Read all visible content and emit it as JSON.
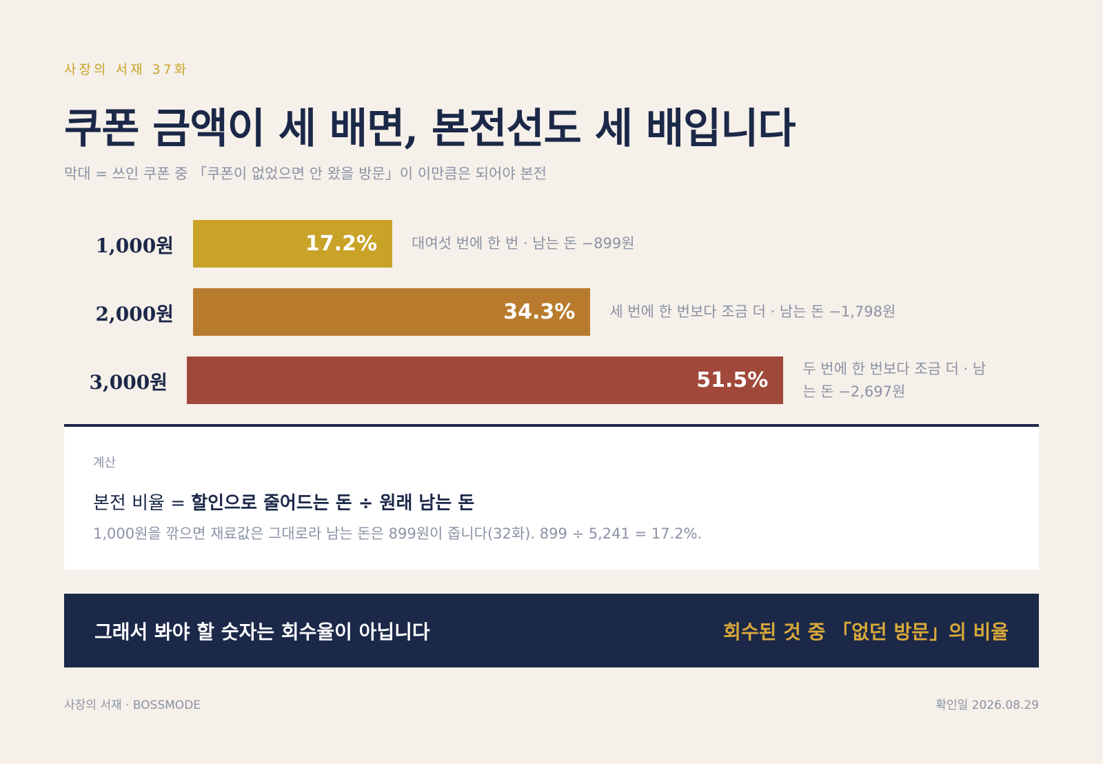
{
  "header": {
    "eyebrow": "사장의 서재 37화",
    "title": "쿠폰 금액이 세 배면, 본전선도 세 배입니다",
    "subtitle": "막대 = 쓰인 쿠폰 중 「쿠폰이 없었으면 안 왔을 방문」이 이만큼은 되어야 본전"
  },
  "chart_data": {
    "type": "bar",
    "orientation": "horizontal",
    "categories": [
      "1,000원",
      "2,000원",
      "3,000원"
    ],
    "values": [
      17.2,
      34.3,
      51.5
    ],
    "value_labels": [
      "17.2%",
      "34.3%",
      "51.5%"
    ],
    "notes": [
      "대여섯 번에 한 번 · 남는 돈 −899원",
      "세 번에 한 번보다 조금 더 · 남는 돈 −1,798원",
      "두 번에 한 번보다 조금 더 · 남는 돈 −2,697원"
    ],
    "colors": [
      "#c9a228",
      "#b87b2e",
      "#a0493b"
    ],
    "xlim": [
      0,
      100
    ]
  },
  "calc": {
    "label": "계산",
    "formula_prefix": "본전 비율 = ",
    "formula_bold": "할인으로 줄어드는 돈 ÷ 원래 남는 돈",
    "note": "1,000원을 깎으면 재료값은 그대로라 남는 돈은 899원이 줍니다(32화). 899 ÷ 5,241 = 17.2%."
  },
  "banner": {
    "left": "그래서 봐야 할 숫자는 회수율이 아닙니다",
    "right": "회수된 것 중 「없던 방문」의 비율"
  },
  "footer": {
    "left": "사장의 서재 · BOSSMODE",
    "right": "확인일 2026.08.29"
  },
  "colors": {
    "background": "#f5f0e9",
    "navy": "#1b2848",
    "accent_gold": "#c9a228",
    "muted": "#8a92a4"
  }
}
